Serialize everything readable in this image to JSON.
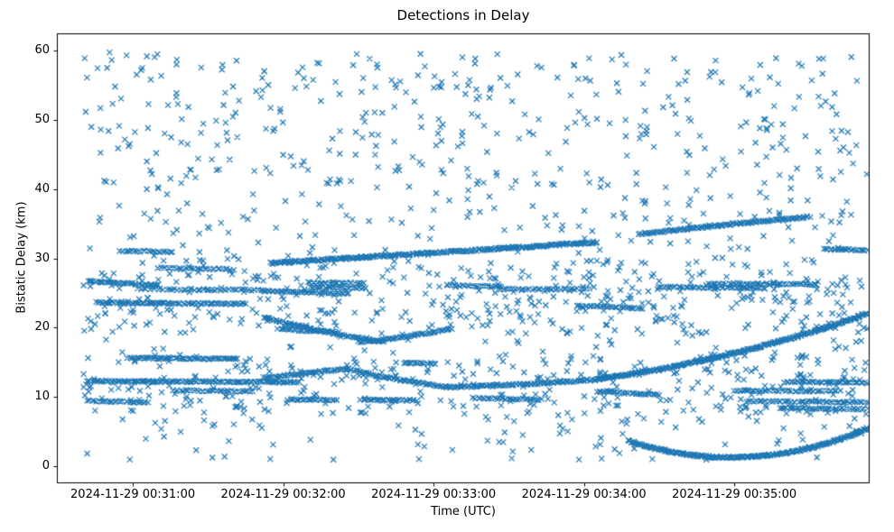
{
  "chart_data": {
    "type": "scatter",
    "title": "Detections in Delay",
    "xlabel": "Time (UTC)",
    "ylabel": "Bistatic Delay (km)",
    "marker": "x",
    "color": "#1f77b4",
    "time_base": "2024-11-29 00:30:00",
    "xlim_s": [
      29.7,
      354
    ],
    "ylim": [
      -2.5,
      62.5
    ],
    "xticks": [
      {
        "s": 60,
        "label": "2024-11-29 00:31:00"
      },
      {
        "s": 120,
        "label": "2024-11-29 00:32:00"
      },
      {
        "s": 180,
        "label": "2024-11-29 00:33:00"
      },
      {
        "s": 240,
        "label": "2024-11-29 00:34:00"
      },
      {
        "s": 300,
        "label": "2024-11-29 00:35:00"
      }
    ],
    "yticks": [
      0,
      10,
      20,
      30,
      40,
      50,
      60
    ],
    "seed": 20241129,
    "tracks": [
      {
        "t": [
          42,
          70
        ],
        "y": [
          26.7,
          26.4,
          26.1
        ],
        "n": 40,
        "j": 0.12
      },
      {
        "t": [
          46,
          105
        ],
        "y": [
          23.6,
          23.5,
          23.4
        ],
        "n": 80,
        "j": 0.12
      },
      {
        "t": [
          62,
          112
        ],
        "y": [
          25.6,
          25.5,
          25.4
        ],
        "n": 45,
        "j": 0.12
      },
      {
        "t": [
          70,
          100
        ],
        "y": [
          28.6,
          28.5,
          28.4
        ],
        "n": 30,
        "j": 0.12
      },
      {
        "t": [
          55,
          76
        ],
        "y": [
          31.1,
          31.0,
          30.9
        ],
        "n": 22,
        "j": 0.1
      },
      {
        "t": [
          58,
          102
        ],
        "y": [
          15.6,
          15.5,
          15.5
        ],
        "n": 65,
        "j": 0.1
      },
      {
        "t": [
          42,
          126
        ],
        "y": [
          12.25,
          12.2,
          12.1
        ],
        "n": 120,
        "j": 0.1
      },
      {
        "t": [
          42,
          66
        ],
        "y": [
          9.4,
          9.3,
          9.2
        ],
        "n": 28,
        "j": 0.1
      },
      {
        "t": [
          76,
          108
        ],
        "y": [
          10.9,
          10.85,
          10.8
        ],
        "n": 32,
        "j": 0.1
      },
      {
        "t": [
          115,
          245
        ],
        "y": [
          29.3,
          30.8,
          32.3
        ],
        "n": 260,
        "j": 0.14
      },
      {
        "t": [
          112,
          146
        ],
        "y": [
          25.3,
          25.1,
          24.9
        ],
        "n": 40,
        "j": 0.1
      },
      {
        "t": [
          113,
          160
        ],
        "y": [
          21.4,
          19.2,
          17.9
        ],
        "n": 70,
        "j": 0.12
      },
      {
        "t": [
          150,
          187
        ],
        "y": [
          17.9,
          18.4,
          19.9
        ],
        "n": 55,
        "j": 0.12
      },
      {
        "t": [
          118,
          142
        ],
        "y": [
          19.8,
          19.5,
          19.3
        ],
        "n": 28,
        "j": 0.1
      },
      {
        "t": [
          113,
          146
        ],
        "y": [
          12.7,
          13.5,
          14.0
        ],
        "n": 48,
        "j": 0.12
      },
      {
        "t": [
          146,
          186
        ],
        "y": [
          14.0,
          12.3,
          11.4
        ],
        "n": 58,
        "j": 0.12
      },
      {
        "t": [
          186,
          246
        ],
        "y": [
          11.4,
          11.7,
          12.5
        ],
        "n": 95,
        "j": 0.12
      },
      {
        "t": [
          246,
          353
        ],
        "y": [
          12.6,
          15.2,
          22.0
        ],
        "n": 280,
        "j": 0.13
      },
      {
        "t": [
          258,
          353
        ],
        "y": [
          3.6,
          -1.9,
          5.4
        ],
        "n": 240,
        "j": 0.13
      },
      {
        "t": [
          262,
          330
        ],
        "y": [
          33.5,
          34.9,
          36.0
        ],
        "n": 110,
        "j": 0.12
      },
      {
        "t": [
          270,
          312
        ],
        "y": [
          25.85,
          25.8,
          25.7
        ],
        "n": 45,
        "j": 0.1
      },
      {
        "t": [
          290,
          333
        ],
        "y": [
          26.35,
          26.3,
          26.2
        ],
        "n": 45,
        "j": 0.1
      },
      {
        "t": [
          245,
          270
        ],
        "y": [
          10.8,
          10.5,
          10.3
        ],
        "n": 30,
        "j": 0.1
      },
      {
        "t": [
          130,
          152
        ],
        "y": [
          26.5,
          26.45,
          26.4
        ],
        "n": 25,
        "j": 0.1
      },
      {
        "t": [
          131,
          153
        ],
        "y": [
          25.8,
          25.75,
          25.7
        ],
        "n": 25,
        "j": 0.1
      },
      {
        "t": [
          185,
          207
        ],
        "y": [
          26.1,
          26.0,
          25.9
        ],
        "n": 25,
        "j": 0.1
      },
      {
        "t": [
          207,
          242
        ],
        "y": [
          25.5,
          25.5,
          25.6
        ],
        "n": 32,
        "j": 0.1
      },
      {
        "t": [
          168,
          181
        ],
        "y": [
          14.9,
          14.85,
          14.8
        ],
        "n": 18,
        "j": 0.1
      },
      {
        "t": [
          122,
          141
        ],
        "y": [
          9.6,
          9.55,
          9.5
        ],
        "n": 24,
        "j": 0.1
      },
      {
        "t": [
          151,
          173
        ],
        "y": [
          9.6,
          9.55,
          9.5
        ],
        "n": 26,
        "j": 0.1
      },
      {
        "t": [
          196,
          223
        ],
        "y": [
          9.8,
          9.7,
          9.6
        ],
        "n": 30,
        "j": 0.1
      },
      {
        "t": [
          305,
          353
        ],
        "y": [
          9.35,
          9.3,
          9.2
        ],
        "n": 50,
        "j": 0.1
      },
      {
        "t": [
          318,
          353
        ],
        "y": [
          8.35,
          8.3,
          8.2
        ],
        "n": 36,
        "j": 0.1
      },
      {
        "t": [
          320,
          353
        ],
        "y": [
          12.15,
          12.1,
          12.0
        ],
        "n": 40,
        "j": 0.1
      },
      {
        "t": [
          300,
          341
        ],
        "y": [
          10.9,
          10.85,
          10.8
        ],
        "n": 42,
        "j": 0.1
      },
      {
        "t": [
          336,
          353
        ],
        "y": [
          31.3,
          31.25,
          31.2
        ],
        "n": 24,
        "j": 0.1
      },
      {
        "t": [
          238,
          263
        ],
        "y": [
          23.1,
          22.95,
          22.8
        ],
        "n": 30,
        "j": 0.12
      }
    ],
    "noise": [
      {
        "count": 780,
        "t": [
          40,
          353
        ],
        "y": [
          0.8,
          59.8
        ]
      },
      {
        "count": 300,
        "t": [
          40,
          353
        ],
        "y": [
          19,
          30
        ]
      },
      {
        "count": 220,
        "t": [
          40,
          353
        ],
        "y": [
          7.5,
          16.5
        ]
      },
      {
        "count": 120,
        "t": [
          40,
          353
        ],
        "y": [
          40,
          59.5
        ]
      }
    ]
  }
}
